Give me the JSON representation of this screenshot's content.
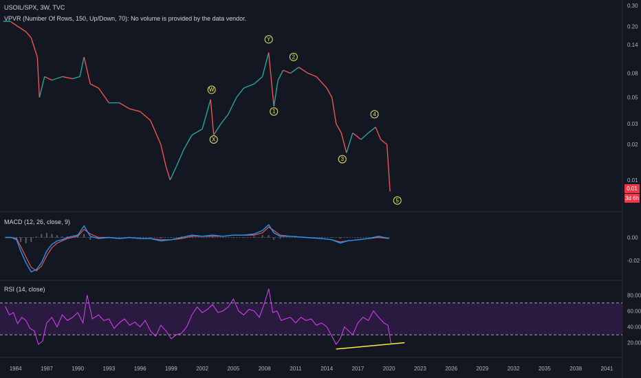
{
  "header": {
    "symbol_line": "USOIL/SPX, 3W, TVC",
    "vpvr_line": "VPVR (Number Of Rows, 150, Up/Down, 70): No volume is provided by the data vendor."
  },
  "price_badge": {
    "value": "0.01",
    "countdown": "3d 6h",
    "color": "#f23645"
  },
  "macd_title": "MACD (12, 26, close, 9)",
  "rsi_title": "RSI (14, close)",
  "colors": {
    "background": "#131722",
    "price_up": "#26a69a",
    "price_down": "#ef5350",
    "macd": "#2196f3",
    "signal": "#ef5350",
    "rsi": "#e040fb",
    "rsi_band": "#2a1a40",
    "annotation": "#e6e85a",
    "trendline": "#ffeb3b"
  },
  "chart_data": [
    {
      "type": "line",
      "name": "price",
      "x_ticks": [
        "1984",
        "1987",
        "1990",
        "1993",
        "1996",
        "1999",
        "2002",
        "2005",
        "2008",
        "2011",
        "2014",
        "2017",
        "2020",
        "2023",
        "2026",
        "2029",
        "2032",
        "2035",
        "2038",
        "2041"
      ],
      "xlim": [
        1982.5,
        2042.5
      ],
      "y_scale": "log",
      "ylim": [
        0.006,
        0.3
      ],
      "y_ticks": [
        "0.30",
        "0.20",
        "0.14",
        "0.08",
        "0.05",
        "0.03",
        "0.02",
        "0.01"
      ],
      "x": [
        1982.8,
        1983.5,
        1984.2,
        1985.0,
        1985.5,
        1986.1,
        1986.3,
        1986.8,
        1987.5,
        1988.5,
        1989.5,
        1990.2,
        1990.6,
        1991.2,
        1992.0,
        1993.0,
        1994.0,
        1995.0,
        1996.0,
        1997.0,
        1998.0,
        1998.5,
        1998.9,
        1999.5,
        2000.2,
        2001.0,
        2002.0,
        2002.8,
        2003.1,
        2003.8,
        2004.5,
        2005.3,
        2006.0,
        2007.0,
        2007.8,
        2008.4,
        2008.9,
        2009.3,
        2009.8,
        2010.5,
        2011.3,
        2012.2,
        2013.0,
        2014.0,
        2014.5,
        2014.9,
        2015.4,
        2015.9,
        2016.5,
        2017.3,
        2018.0,
        2018.7,
        2019.2,
        2019.8,
        2020.1
      ],
      "y": [
        0.22,
        0.22,
        0.2,
        0.18,
        0.16,
        0.11,
        0.05,
        0.075,
        0.07,
        0.075,
        0.072,
        0.075,
        0.11,
        0.065,
        0.06,
        0.045,
        0.045,
        0.04,
        0.038,
        0.032,
        0.02,
        0.013,
        0.01,
        0.013,
        0.018,
        0.024,
        0.027,
        0.048,
        0.024,
        0.03,
        0.036,
        0.05,
        0.06,
        0.065,
        0.075,
        0.12,
        0.042,
        0.07,
        0.085,
        0.08,
        0.09,
        0.08,
        0.075,
        0.06,
        0.05,
        0.03,
        0.025,
        0.017,
        0.025,
        0.022,
        0.025,
        0.028,
        0.022,
        0.02,
        0.008
      ],
      "annotations": [
        {
          "label": "W",
          "x": 2002.9,
          "y": 0.058
        },
        {
          "label": "X",
          "x": 2003.1,
          "y": 0.022
        },
        {
          "label": "Y",
          "x": 2008.4,
          "y": 0.155
        },
        {
          "label": "1",
          "x": 2008.9,
          "y": 0.038
        },
        {
          "label": "2",
          "x": 2010.8,
          "y": 0.11
        },
        {
          "label": "3",
          "x": 2015.5,
          "y": 0.015
        },
        {
          "label": "4",
          "x": 2018.6,
          "y": 0.036
        },
        {
          "label": "5",
          "x": 2020.8,
          "y": 0.0067
        }
      ]
    },
    {
      "type": "line",
      "name": "MACD",
      "xlim": [
        1982.5,
        2042.5
      ],
      "ylim": [
        -0.035,
        0.02
      ],
      "y_ticks": [
        "0.00",
        "-0.02"
      ],
      "x": [
        1983.0,
        1983.6,
        1984.1,
        1984.5,
        1985.0,
        1985.5,
        1986.0,
        1986.5,
        1987.0,
        1987.5,
        1988.0,
        1988.5,
        1989.0,
        1990.0,
        1990.6,
        1991.2,
        1992.0,
        1993.0,
        1994.0,
        1995.0,
        1996.0,
        1997.0,
        1998.0,
        1999.0,
        2000.0,
        2001.0,
        2002.0,
        2003.0,
        2004.0,
        2005.0,
        2006.0,
        2007.0,
        2007.8,
        2008.4,
        2008.9,
        2009.5,
        2010.5,
        2012.0,
        2013.5,
        2014.5,
        2015.3,
        2016.0,
        2017.0,
        2018.0,
        2019.0,
        2020.0
      ],
      "macd": [
        0.0,
        0.0,
        -0.002,
        -0.012,
        -0.022,
        -0.03,
        -0.028,
        -0.022,
        -0.012,
        -0.006,
        -0.003,
        -0.002,
        0.0,
        0.002,
        0.01,
        0.001,
        -0.001,
        0.0,
        -0.001,
        0.0,
        -0.001,
        -0.001,
        -0.003,
        -0.002,
        0.0,
        0.002,
        0.001,
        0.002,
        0.001,
        0.002,
        0.002,
        0.003,
        0.006,
        0.011,
        0.004,
        0.001,
        0.001,
        0.0,
        -0.001,
        -0.002,
        -0.005,
        -0.003,
        -0.002,
        -0.001,
        0.001,
        -0.001
      ],
      "signal": [
        0.0,
        0.0,
        -0.001,
        -0.008,
        -0.017,
        -0.026,
        -0.029,
        -0.025,
        -0.016,
        -0.009,
        -0.005,
        -0.003,
        -0.001,
        0.001,
        0.007,
        0.003,
        0.0,
        0.0,
        -0.001,
        0.0,
        -0.001,
        -0.001,
        -0.002,
        -0.002,
        -0.001,
        0.001,
        0.001,
        0.001,
        0.001,
        0.002,
        0.002,
        0.002,
        0.004,
        0.009,
        0.006,
        0.002,
        0.001,
        0.0,
        -0.001,
        -0.002,
        -0.004,
        -0.003,
        -0.002,
        -0.001,
        0.0,
        -0.001
      ]
    },
    {
      "type": "line",
      "name": "RSI",
      "xlim": [
        1982.5,
        2042.5
      ],
      "ylim": [
        5,
        95
      ],
      "y_ticks": [
        "80.00",
        "60.00",
        "40.00",
        "20.00"
      ],
      "upper_band": 70,
      "lower_band": 30,
      "x": [
        1983.0,
        1983.4,
        1983.8,
        1984.2,
        1984.6,
        1985.0,
        1985.4,
        1985.8,
        1986.2,
        1986.6,
        1987.0,
        1987.5,
        1988.0,
        1988.5,
        1989.0,
        1989.5,
        1990.0,
        1990.5,
        1990.9,
        1991.4,
        1992.0,
        1992.5,
        1993.0,
        1993.5,
        1994.0,
        1994.5,
        1995.0,
        1995.5,
        1996.0,
        1996.5,
        1997.0,
        1997.5,
        1998.0,
        1998.5,
        1999.0,
        1999.5,
        2000.0,
        2000.5,
        2001.0,
        2001.5,
        2002.0,
        2002.5,
        2003.0,
        2003.5,
        2004.0,
        2004.5,
        2005.0,
        2005.5,
        2006.0,
        2006.5,
        2007.0,
        2007.5,
        2008.0,
        2008.4,
        2008.8,
        2009.2,
        2009.6,
        2010.0,
        2010.5,
        2011.0,
        2011.5,
        2012.0,
        2012.5,
        2013.0,
        2013.5,
        2014.0,
        2014.5,
        2014.9,
        2015.3,
        2015.7,
        2016.1,
        2016.5,
        2017.0,
        2017.5,
        2018.0,
        2018.5,
        2019.0,
        2019.5,
        2019.9,
        2020.2
      ],
      "y": [
        66,
        55,
        58,
        44,
        52,
        48,
        38,
        35,
        18,
        22,
        45,
        52,
        40,
        55,
        48,
        52,
        58,
        45,
        80,
        50,
        55,
        48,
        50,
        38,
        45,
        50,
        42,
        46,
        40,
        48,
        35,
        28,
        42,
        35,
        25,
        30,
        32,
        40,
        55,
        65,
        58,
        62,
        68,
        58,
        60,
        65,
        75,
        60,
        55,
        62,
        60,
        52,
        70,
        88,
        58,
        60,
        48,
        50,
        52,
        45,
        52,
        48,
        50,
        42,
        45,
        40,
        28,
        18,
        25,
        40,
        35,
        30,
        45,
        52,
        48,
        60,
        52,
        45,
        42,
        18
      ],
      "trendline": {
        "x": [
          2014.9,
          2021.5
        ],
        "y": [
          12,
          20
        ]
      }
    }
  ]
}
